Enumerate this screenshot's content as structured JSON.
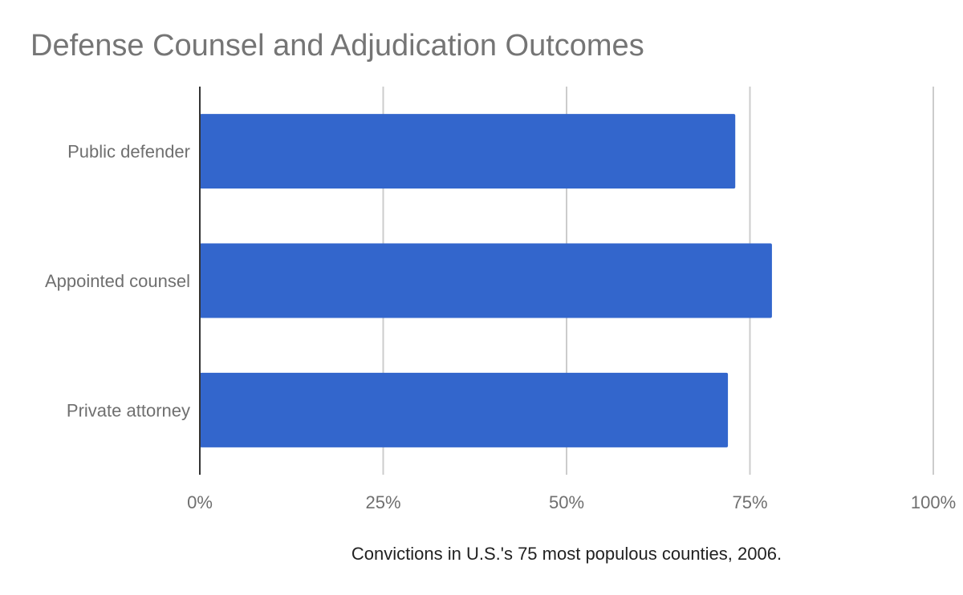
{
  "chart_data": {
    "type": "bar",
    "orientation": "horizontal",
    "title": "Defense Counsel and Adjudication Outcomes",
    "xlabel": "Convictions in U.S.'s 75 most populous counties, 2006.",
    "ylabel": "",
    "categories": [
      "Public defender",
      "Appointed counsel",
      "Private attorney"
    ],
    "values": [
      73,
      78,
      72
    ],
    "unit": "%",
    "xlim": [
      0,
      100
    ],
    "xticks": [
      0,
      25,
      50,
      75,
      100
    ],
    "xtick_labels": [
      "0%",
      "25%",
      "50%",
      "75%",
      "100%"
    ],
    "grid": true,
    "legend": "none",
    "colors": {
      "bar": "#3366cc",
      "grid": "#cccccc",
      "axis": "#333333",
      "title": "#757575",
      "label": "#6f6f6f",
      "xlabel": "#222222"
    }
  }
}
